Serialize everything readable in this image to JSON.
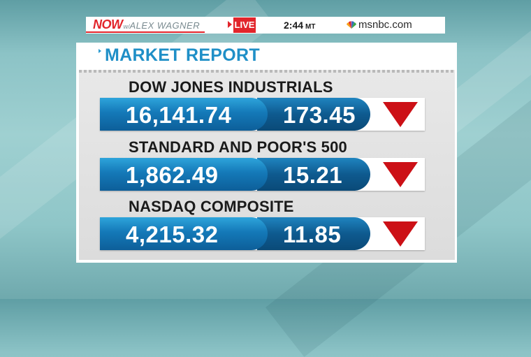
{
  "broadcast": {
    "show_brand": "NOW",
    "show_with": "w/",
    "show_host": "ALEX WAGNER",
    "live_label": "LIVE",
    "time": "2:44",
    "time_zone": "MT",
    "network": "msnbc.com"
  },
  "report": {
    "title": "MARKET REPORT",
    "indices": [
      {
        "name": "DOW JONES INDUSTRIALS",
        "value": "16,141.74",
        "change": "173.45",
        "direction": "down",
        "arrow_color": "#cc1016"
      },
      {
        "name": "STANDARD AND POOR'S 500",
        "value": "1,862.49",
        "change": "15.21",
        "direction": "down",
        "arrow_color": "#cc1016"
      },
      {
        "name": "NASDAQ COMPOSITE",
        "value": "4,215.32",
        "change": "11.85",
        "direction": "down",
        "arrow_color": "#cc1016"
      }
    ]
  },
  "colors": {
    "brand_red": "#e2252b",
    "title_blue": "#1f8fc7",
    "bar_blue": "#1479b8"
  },
  "icons": {
    "peacock": "msnbc-peacock-icon",
    "arrow": "down-triangle-icon"
  }
}
